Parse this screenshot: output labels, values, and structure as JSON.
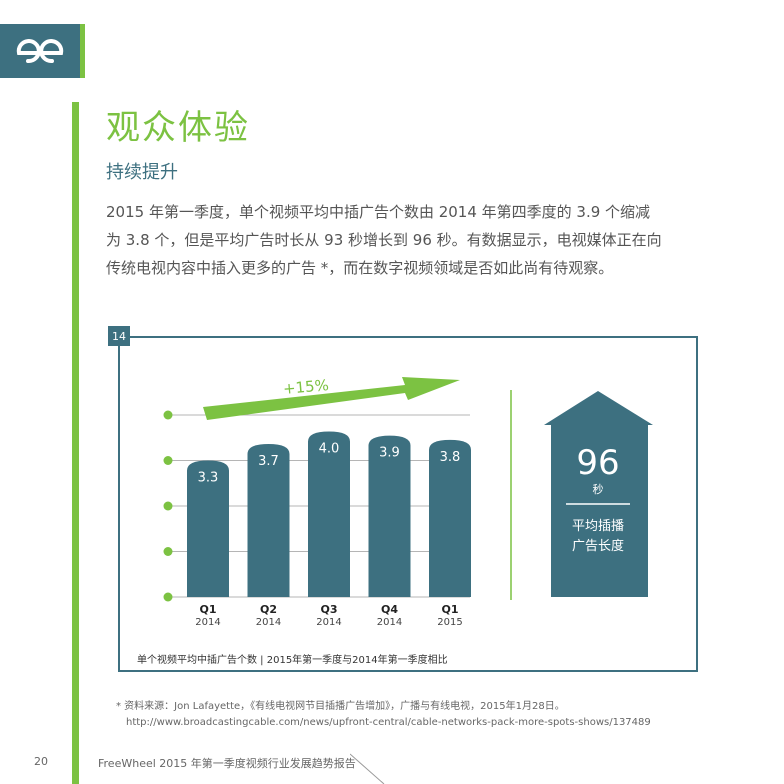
{
  "header": {
    "logo_icon": "freewheel-logo-icon",
    "accent_color": "#7cc242",
    "brand_color": "#3d7080"
  },
  "page": {
    "title": "观众体验",
    "subtitle": "持续提升",
    "intro_lines": [
      "2015 年第一季度，单个视频平均中插广告个数由 2014 年第四季度的 3.9 个缩减",
      "为 3.8 个，但是平均广告时长从 93 秒增长到 96 秒。有数据显示，电视媒体正在向",
      "传统电视内容中插入更多的广告 *，而在数字视频领域是否如此尚有待观察。"
    ]
  },
  "figure": {
    "number": "14",
    "caption": "单个视频平均中插广告个数 | 2015年第一季度与2014年第一季度相比"
  },
  "chart_data": [
    {
      "type": "bar",
      "categories": [
        "Q1 2014",
        "Q2 2014",
        "Q3 2014",
        "Q4 2014",
        "Q1 2015"
      ],
      "category_quarters": [
        "Q1",
        "Q2",
        "Q3",
        "Q4",
        "Q1"
      ],
      "category_years": [
        "2014",
        "2014",
        "2014",
        "2014",
        "2015"
      ],
      "values": [
        3.3,
        3.7,
        4.0,
        3.9,
        3.8
      ],
      "data_labels": [
        "3.3",
        "3.7",
        "4.0",
        "3.9",
        "3.8"
      ],
      "annotation": "+15%",
      "ylim": [
        0,
        4.4
      ],
      "grid": true,
      "bar_color": "#3d7080",
      "arrow_color": "#7cc242"
    },
    {
      "type": "table",
      "value": "96",
      "unit": "秒",
      "label_lines": [
        "平均插播",
        "广告长度"
      ]
    }
  ],
  "footnote": {
    "source": "* 资料来源：Jon Lafayette，《有线电视网节目插播广告增加》，广播与有线电视，2015年1月28日。",
    "url": "http://www.broadcastingcable.com/news/upfront-central/cable-networks-pack-more-spots-shows/137489"
  },
  "footer": {
    "page_number": "20",
    "report_title": "FreeWheel 2015 年第一季度视频行业发展趋势报告"
  }
}
